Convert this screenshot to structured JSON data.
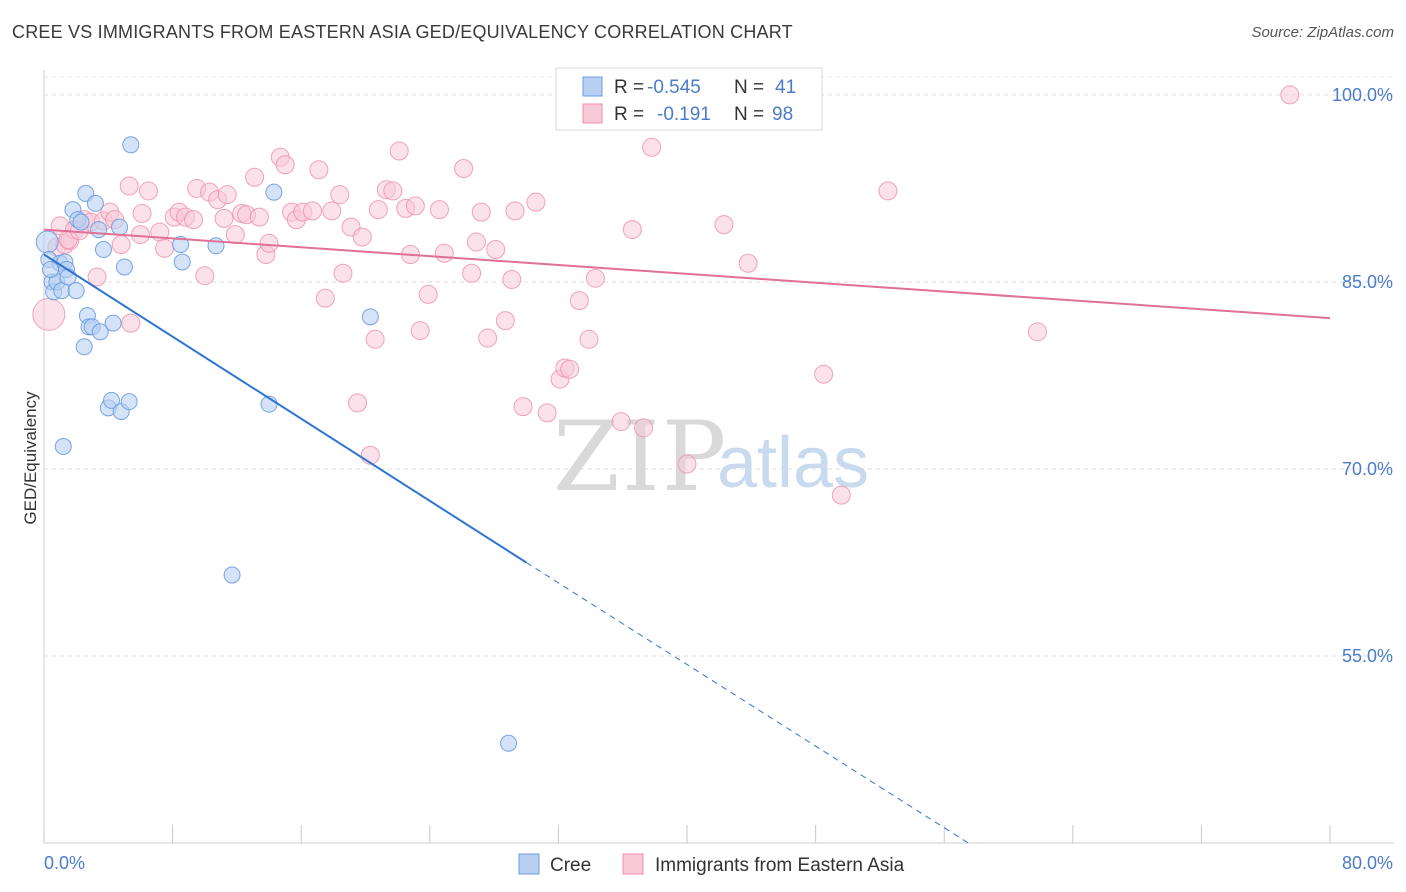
{
  "title": "CREE VS IMMIGRANTS FROM EASTERN ASIA GED/EQUIVALENCY CORRELATION CHART",
  "source": "Source: ZipAtlas.com",
  "watermark": {
    "zip": "ZIP",
    "atlas": "atlas"
  },
  "colors": {
    "cree": "#6a9be0",
    "immigrants": "#f08cab",
    "cree_fill": "#b7d0f2",
    "immigrants_fill": "#f8c9d7",
    "cree_line": "#2f74d0",
    "immigrants_line": "#e07096"
  },
  "legend": {
    "rows": [
      {
        "r_label": "R =",
        "r_value": "-0.545",
        "n_label": "N =",
        "n_value": "41"
      },
      {
        "r_label": "R =",
        "r_value": "-0.191",
        "n_label": "N =",
        "n_value": "98"
      }
    ]
  },
  "chart_data": {
    "type": "scatter",
    "title": "CREE VS IMMIGRANTS FROM EASTERN ASIA GED/EQUIVALENCY CORRELATION CHART",
    "xlabel": "",
    "ylabel": "GED/Equivalency",
    "xlim": [
      0,
      80
    ],
    "ylim": [
      40,
      102
    ],
    "x_tick_labels": [
      "0.0%",
      "80.0%"
    ],
    "y_ticks": [
      55,
      70,
      85,
      100
    ],
    "y_tick_labels": [
      "55.0%",
      "70.0%",
      "85.0%",
      "100.0%"
    ],
    "grid": true,
    "legend_position": "top-center",
    "series": [
      {
        "name": "Cree",
        "trend": {
          "x0": 0,
          "y0": 87.2,
          "x1": 30,
          "y1": 62.5,
          "dash_to_x": 57.5,
          "dash_to_y": 40
        },
        "points": [
          [
            0.2,
            88.2
          ],
          [
            0.3,
            86.8
          ],
          [
            0.5,
            85.0
          ],
          [
            0.6,
            84.2
          ],
          [
            0.8,
            85.0
          ],
          [
            1.0,
            86.5
          ],
          [
            1.1,
            84.3
          ],
          [
            1.3,
            86.6
          ],
          [
            1.4,
            86.0
          ],
          [
            1.5,
            85.4
          ],
          [
            1.8,
            90.8
          ],
          [
            2.0,
            84.3
          ],
          [
            2.1,
            90.0
          ],
          [
            2.3,
            89.8
          ],
          [
            2.5,
            79.8
          ],
          [
            2.6,
            92.1
          ],
          [
            2.7,
            82.3
          ],
          [
            2.8,
            81.4
          ],
          [
            3.0,
            81.4
          ],
          [
            3.2,
            91.3
          ],
          [
            3.4,
            89.2
          ],
          [
            3.5,
            81.0
          ],
          [
            3.7,
            87.6
          ],
          [
            4.0,
            74.9
          ],
          [
            4.2,
            75.5
          ],
          [
            4.3,
            81.7
          ],
          [
            4.7,
            89.4
          ],
          [
            4.8,
            74.6
          ],
          [
            5.0,
            86.2
          ],
          [
            5.3,
            75.4
          ],
          [
            5.4,
            96.0
          ],
          [
            8.5,
            88.0
          ],
          [
            8.6,
            86.6
          ],
          [
            10.7,
            87.9
          ],
          [
            11.7,
            61.5
          ],
          [
            14.0,
            75.2
          ],
          [
            14.3,
            92.2
          ],
          [
            20.3,
            82.2
          ],
          [
            28.9,
            48.0
          ],
          [
            1.2,
            71.8
          ],
          [
            0.4,
            86.0
          ]
        ]
      },
      {
        "name": "Immigrants from Eastern Asia",
        "trend": {
          "x0": 0,
          "y0": 89.2,
          "x1": 80,
          "y1": 82.1
        },
        "points": [
          [
            0.3,
            82.4
          ],
          [
            0.8,
            87.8
          ],
          [
            1.0,
            89.5
          ],
          [
            1.3,
            88.0
          ],
          [
            1.6,
            88.3
          ],
          [
            1.9,
            89.2
          ],
          [
            2.5,
            90.0
          ],
          [
            2.9,
            89.8
          ],
          [
            3.3,
            85.4
          ],
          [
            3.7,
            89.9
          ],
          [
            4.1,
            90.6
          ],
          [
            4.4,
            90.0
          ],
          [
            4.8,
            88.0
          ],
          [
            5.3,
            92.7
          ],
          [
            5.4,
            81.7
          ],
          [
            6.1,
            90.5
          ],
          [
            6.5,
            92.3
          ],
          [
            7.2,
            89.0
          ],
          [
            7.5,
            87.7
          ],
          [
            8.1,
            90.2
          ],
          [
            8.4,
            90.6
          ],
          [
            8.8,
            90.2
          ],
          [
            9.3,
            90.0
          ],
          [
            9.5,
            92.5
          ],
          [
            10.0,
            85.5
          ],
          [
            10.3,
            92.2
          ],
          [
            10.8,
            91.6
          ],
          [
            11.2,
            90.1
          ],
          [
            11.4,
            92.0
          ],
          [
            11.9,
            88.8
          ],
          [
            12.3,
            90.5
          ],
          [
            12.6,
            90.4
          ],
          [
            13.1,
            93.4
          ],
          [
            13.4,
            90.2
          ],
          [
            13.8,
            87.2
          ],
          [
            14.0,
            88.1
          ],
          [
            14.7,
            95.0
          ],
          [
            15.0,
            94.4
          ],
          [
            15.4,
            90.6
          ],
          [
            15.7,
            90.0
          ],
          [
            16.1,
            90.6
          ],
          [
            16.7,
            90.7
          ],
          [
            17.1,
            94.0
          ],
          [
            17.5,
            83.7
          ],
          [
            17.9,
            90.7
          ],
          [
            18.4,
            92.0
          ],
          [
            18.6,
            85.7
          ],
          [
            19.1,
            89.4
          ],
          [
            19.5,
            75.3
          ],
          [
            19.8,
            88.6
          ],
          [
            20.3,
            71.1
          ],
          [
            20.6,
            80.4
          ],
          [
            20.8,
            90.8
          ],
          [
            21.3,
            92.4
          ],
          [
            21.7,
            92.3
          ],
          [
            22.1,
            95.5
          ],
          [
            22.5,
            90.9
          ],
          [
            22.8,
            87.2
          ],
          [
            23.1,
            91.1
          ],
          [
            23.4,
            81.1
          ],
          [
            23.9,
            84.0
          ],
          [
            24.6,
            90.8
          ],
          [
            24.9,
            87.3
          ],
          [
            26.1,
            94.1
          ],
          [
            26.6,
            85.7
          ],
          [
            26.9,
            88.2
          ],
          [
            27.2,
            90.6
          ],
          [
            27.6,
            80.5
          ],
          [
            28.1,
            87.6
          ],
          [
            28.7,
            81.9
          ],
          [
            29.1,
            85.2
          ],
          [
            29.3,
            90.7
          ],
          [
            29.8,
            75.0
          ],
          [
            30.6,
            91.4
          ],
          [
            31.3,
            74.5
          ],
          [
            32.1,
            77.2
          ],
          [
            32.4,
            78.1
          ],
          [
            32.7,
            78.0
          ],
          [
            33.3,
            83.5
          ],
          [
            33.9,
            80.4
          ],
          [
            34.3,
            85.3
          ],
          [
            35.9,
            73.8
          ],
          [
            36.6,
            89.2
          ],
          [
            37.3,
            73.3
          ],
          [
            37.8,
            95.8
          ],
          [
            38.5,
            100.0
          ],
          [
            40.0,
            70.4
          ],
          [
            42.3,
            89.6
          ],
          [
            42.8,
            100.0
          ],
          [
            43.8,
            86.5
          ],
          [
            48.5,
            77.6
          ],
          [
            49.6,
            67.9
          ],
          [
            52.5,
            92.3
          ],
          [
            61.8,
            81.0
          ],
          [
            77.5,
            100.0
          ],
          [
            1.5,
            88.4
          ],
          [
            2.2,
            89.1
          ],
          [
            6.0,
            88.8
          ]
        ]
      }
    ]
  },
  "bottom_legend": [
    {
      "label": "Cree"
    },
    {
      "label": "Immigrants from Eastern Asia"
    }
  ]
}
